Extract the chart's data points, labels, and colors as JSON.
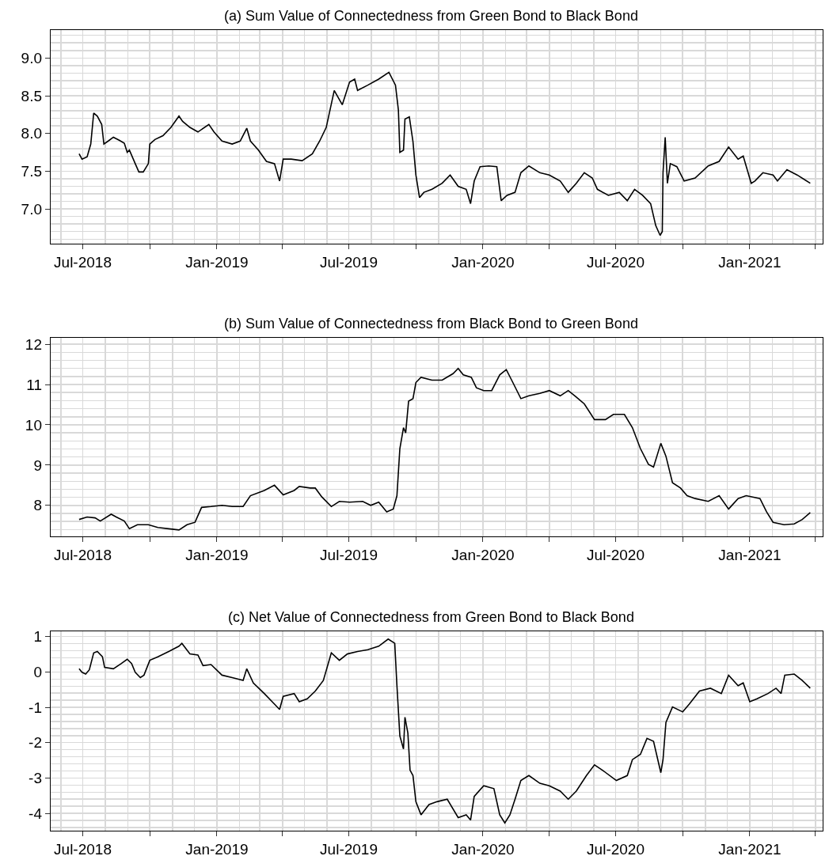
{
  "chart_data": [
    {
      "type": "line",
      "title": "(a) Sum Value of Connectedness from Green Bond to Black Bond",
      "grid": true,
      "xlim": [
        "2018-05-18",
        "2021-04-11"
      ],
      "xticks": [
        {
          "value": "2018-07-01",
          "label": "Jul-2018"
        },
        {
          "value": "2018-10-01",
          "label": null
        },
        {
          "value": "2019-01-01",
          "label": "Jan-2019"
        },
        {
          "value": "2019-04-01",
          "label": null
        },
        {
          "value": "2019-07-01",
          "label": "Jul-2019"
        },
        {
          "value": "2019-10-01",
          "label": null
        },
        {
          "value": "2020-01-01",
          "label": "Jan-2020"
        },
        {
          "value": "2020-04-01",
          "label": null
        },
        {
          "value": "2020-07-01",
          "label": "Jul-2020"
        },
        {
          "value": "2020-10-01",
          "label": null
        },
        {
          "value": "2021-01-01",
          "label": "Jan-2021"
        },
        {
          "value": "2021-04-01",
          "label": null
        }
      ],
      "ylim": [
        6.54,
        9.37
      ],
      "yticks": [
        {
          "value": 7,
          "label": "7.0"
        },
        7.5,
        {
          "value": 8,
          "label": "8.0"
        },
        8.5,
        {
          "value": 9,
          "label": "9.0"
        }
      ],
      "series": [
        {
          "color": "#000000",
          "x": [
            "2018-06-26",
            "2018-06-30",
            "2018-07-07",
            "2018-07-12",
            "2018-07-16",
            "2018-07-21",
            "2018-07-27",
            "2018-07-30",
            "2018-08-05",
            "2018-08-12",
            "2018-08-20",
            "2018-08-27",
            "2018-08-31",
            "2018-09-03",
            "2018-09-11",
            "2018-09-16",
            "2018-09-22",
            "2018-09-29",
            "2018-10-01",
            "2018-10-08",
            "2018-10-19",
            "2018-10-30",
            "2018-11-10",
            "2018-11-15",
            "2018-11-25",
            "2018-12-06",
            "2018-12-21",
            "2018-12-28",
            "2019-01-08",
            "2019-01-22",
            "2019-02-02",
            "2019-02-11",
            "2019-02-16",
            "2019-02-27",
            "2019-03-10",
            "2019-03-21",
            "2019-03-28",
            "2019-04-02",
            "2019-04-13",
            "2019-04-28",
            "2019-05-12",
            "2019-05-22",
            "2019-05-31",
            "2019-06-11",
            "2019-06-22",
            "2019-07-02",
            "2019-07-09",
            "2019-07-13",
            "2019-07-27",
            "2019-08-11",
            "2019-08-25",
            "2019-09-03",
            "2019-09-07",
            "2019-09-09",
            "2019-09-14",
            "2019-09-16",
            "2019-09-22",
            "2019-09-27",
            "2019-10-01",
            "2019-10-06",
            "2019-10-12",
            "2019-10-23",
            "2019-11-06",
            "2019-11-17",
            "2019-11-28",
            "2019-12-09",
            "2019-12-15",
            "2019-12-20",
            "2019-12-28",
            "2020-01-09",
            "2020-01-20",
            "2020-01-26",
            "2020-02-03",
            "2020-02-14",
            "2020-02-22",
            "2020-03-04",
            "2020-03-19",
            "2020-04-01",
            "2020-04-16",
            "2020-04-27",
            "2020-05-08",
            "2020-05-19",
            "2020-05-30",
            "2020-06-06",
            "2020-06-21",
            "2020-07-06",
            "2020-07-17",
            "2020-07-27",
            "2020-08-07",
            "2020-08-18",
            "2020-08-25",
            "2020-08-31",
            "2020-09-03",
            "2020-09-04",
            "2020-09-07",
            "2020-09-10",
            "2020-09-14",
            "2020-09-23",
            "2020-10-03",
            "2020-10-18",
            "2020-11-05",
            "2020-11-20",
            "2020-12-03",
            "2020-12-16",
            "2020-12-23",
            "2021-01-03",
            "2021-01-08",
            "2021-01-19",
            "2021-02-02",
            "2021-02-08",
            "2021-02-21",
            "2021-03-07",
            "2021-03-25"
          ],
          "values": [
            7.73,
            7.66,
            7.69,
            7.86,
            8.27,
            8.23,
            8.12,
            7.86,
            7.9,
            7.95,
            7.91,
            7.87,
            7.75,
            7.78,
            7.6,
            7.49,
            7.49,
            7.6,
            7.86,
            7.92,
            7.97,
            8.08,
            8.23,
            8.16,
            8.08,
            8.02,
            8.12,
            8.02,
            7.9,
            7.86,
            7.9,
            8.07,
            7.9,
            7.78,
            7.63,
            7.6,
            7.37,
            7.66,
            7.66,
            7.64,
            7.73,
            7.9,
            8.08,
            8.57,
            8.38,
            8.68,
            8.72,
            8.57,
            8.64,
            8.72,
            8.81,
            8.64,
            8.31,
            7.75,
            7.78,
            8.19,
            8.22,
            7.89,
            7.45,
            7.15,
            7.22,
            7.26,
            7.34,
            7.45,
            7.3,
            7.26,
            7.07,
            7.37,
            7.56,
            7.57,
            7.56,
            7.11,
            7.18,
            7.22,
            7.48,
            7.57,
            7.48,
            7.45,
            7.37,
            7.22,
            7.34,
            7.48,
            7.41,
            7.26,
            7.18,
            7.22,
            7.11,
            7.26,
            7.18,
            7.07,
            6.78,
            6.65,
            6.7,
            7.48,
            7.95,
            7.34,
            7.6,
            7.56,
            7.37,
            7.41,
            7.57,
            7.63,
            7.82,
            7.66,
            7.7,
            7.34,
            7.37,
            7.48,
            7.45,
            7.37,
            7.52,
            7.45,
            7.34
          ]
        }
      ]
    },
    {
      "type": "line",
      "title": "(b) Sum Value of Connectedness from Black Bond to Green Bond",
      "grid": true,
      "xlim": [
        "2018-05-18",
        "2021-04-11"
      ],
      "xticks": [
        {
          "value": "2018-07-01",
          "label": "Jul-2018"
        },
        {
          "value": "2018-10-01",
          "label": null
        },
        {
          "value": "2019-01-01",
          "label": "Jan-2019"
        },
        {
          "value": "2019-04-01",
          "label": null
        },
        {
          "value": "2019-07-01",
          "label": "Jul-2019"
        },
        {
          "value": "2019-10-01",
          "label": null
        },
        {
          "value": "2020-01-01",
          "label": "Jan-2020"
        },
        {
          "value": "2020-04-01",
          "label": null
        },
        {
          "value": "2020-07-01",
          "label": "Jul-2020"
        },
        {
          "value": "2020-10-01",
          "label": null
        },
        {
          "value": "2021-01-01",
          "label": "Jan-2021"
        },
        {
          "value": "2021-04-01",
          "label": null
        }
      ],
      "ylim": [
        7.23,
        12.16
      ],
      "yticks": [
        8,
        9,
        10,
        11,
        12
      ],
      "series": [
        {
          "color": "#000000",
          "x": [
            "2018-06-26",
            "2018-07-07",
            "2018-07-18",
            "2018-07-25",
            "2018-08-09",
            "2018-08-16",
            "2018-08-27",
            "2018-09-03",
            "2018-09-14",
            "2018-09-29",
            "2018-10-12",
            "2018-10-27",
            "2018-11-10",
            "2018-11-21",
            "2018-12-02",
            "2018-12-11",
            "2018-12-24",
            "2019-01-08",
            "2019-01-22",
            "2019-02-06",
            "2019-02-16",
            "2019-03-07",
            "2019-03-21",
            "2019-04-02",
            "2019-04-17",
            "2019-04-24",
            "2019-05-09",
            "2019-05-16",
            "2019-05-25",
            "2019-06-07",
            "2019-06-18",
            "2019-07-02",
            "2019-07-20",
            "2019-07-31",
            "2019-08-11",
            "2019-08-22",
            "2019-08-31",
            "2019-09-05",
            "2019-09-09",
            "2019-09-14",
            "2019-09-17",
            "2019-09-21",
            "2019-09-27",
            "2019-10-01",
            "2019-10-08",
            "2019-10-23",
            "2019-11-06",
            "2019-11-21",
            "2019-11-28",
            "2019-12-05",
            "2019-12-16",
            "2019-12-23",
            "2020-01-02",
            "2020-01-13",
            "2020-01-24",
            "2020-02-02",
            "2020-02-11",
            "2020-02-22",
            "2020-03-04",
            "2020-03-19",
            "2020-04-01",
            "2020-04-16",
            "2020-04-27",
            "2020-05-08",
            "2020-05-19",
            "2020-06-02",
            "2020-06-17",
            "2020-06-28",
            "2020-07-13",
            "2020-07-24",
            "2020-08-04",
            "2020-08-15",
            "2020-08-22",
            "2020-09-01",
            "2020-09-08",
            "2020-09-17",
            "2020-09-28",
            "2020-10-07",
            "2020-10-18",
            "2020-11-05",
            "2020-11-20",
            "2020-12-03",
            "2020-12-16",
            "2020-12-27",
            "2021-01-15",
            "2021-01-24",
            "2021-02-02",
            "2021-02-17",
            "2021-03-03",
            "2021-03-14",
            "2021-03-25"
          ],
          "values": [
            7.65,
            7.71,
            7.69,
            7.61,
            7.78,
            7.71,
            7.61,
            7.42,
            7.52,
            7.52,
            7.45,
            7.42,
            7.39,
            7.52,
            7.58,
            7.95,
            7.97,
            8.0,
            7.97,
            7.97,
            8.24,
            8.37,
            8.5,
            8.26,
            8.37,
            8.47,
            8.43,
            8.43,
            8.21,
            7.97,
            8.1,
            8.08,
            8.1,
            8.0,
            8.08,
            7.84,
            7.91,
            8.24,
            9.41,
            9.93,
            9.8,
            10.59,
            10.65,
            11.05,
            11.18,
            11.11,
            11.11,
            11.27,
            11.4,
            11.24,
            11.18,
            10.92,
            10.85,
            10.85,
            11.24,
            11.37,
            11.05,
            10.65,
            10.72,
            10.78,
            10.85,
            10.72,
            10.85,
            10.69,
            10.52,
            10.13,
            10.13,
            10.26,
            10.26,
            9.93,
            9.41,
            9.02,
            8.95,
            9.54,
            9.22,
            8.56,
            8.43,
            8.24,
            8.17,
            8.1,
            8.24,
            7.91,
            8.17,
            8.24,
            8.17,
            7.84,
            7.58,
            7.52,
            7.54,
            7.65,
            7.82
          ]
        }
      ]
    },
    {
      "type": "line",
      "title": "(c) Net Value of Connectedness from Green Bond to Black Bond",
      "grid": true,
      "xlim": [
        "2018-05-18",
        "2021-04-11"
      ],
      "xticks": [
        {
          "value": "2018-07-01",
          "label": "Jul-2018"
        },
        {
          "value": "2018-10-01",
          "label": null
        },
        {
          "value": "2019-01-01",
          "label": "Jan-2019"
        },
        {
          "value": "2019-04-01",
          "label": null
        },
        {
          "value": "2019-07-01",
          "label": "Jul-2019"
        },
        {
          "value": "2019-10-01",
          "label": null
        },
        {
          "value": "2020-01-01",
          "label": "Jan-2020"
        },
        {
          "value": "2020-04-01",
          "label": null
        },
        {
          "value": "2020-07-01",
          "label": "Jul-2020"
        },
        {
          "value": "2020-10-01",
          "label": null
        },
        {
          "value": "2021-01-01",
          "label": "Jan-2021"
        },
        {
          "value": "2021-04-01",
          "label": null
        }
      ],
      "ylim": [
        -4.49,
        1.15
      ],
      "yticks": [
        -4,
        -3,
        -2,
        -1,
        0,
        1
      ],
      "series": [
        {
          "color": "#000000",
          "x": [
            "2018-06-26",
            "2018-06-30",
            "2018-07-05",
            "2018-07-10",
            "2018-07-16",
            "2018-07-21",
            "2018-07-28",
            "2018-07-31",
            "2018-08-12",
            "2018-08-23",
            "2018-08-31",
            "2018-09-06",
            "2018-09-11",
            "2018-09-18",
            "2018-09-23",
            "2018-10-01",
            "2018-10-12",
            "2018-10-27",
            "2018-11-10",
            "2018-11-14",
            "2018-11-25",
            "2018-12-06",
            "2018-12-13",
            "2018-12-24",
            "2019-01-08",
            "2019-01-22",
            "2019-02-06",
            "2019-02-11",
            "2019-02-20",
            "2019-03-07",
            "2019-03-21",
            "2019-03-28",
            "2019-04-02",
            "2019-04-17",
            "2019-04-24",
            "2019-05-05",
            "2019-05-16",
            "2019-05-27",
            "2019-06-07",
            "2019-06-18",
            "2019-06-29",
            "2019-07-13",
            "2019-07-27",
            "2019-08-11",
            "2019-08-24",
            "2019-09-02",
            "2019-09-05",
            "2019-09-09",
            "2019-09-14",
            "2019-09-16",
            "2019-09-20",
            "2019-09-23",
            "2019-09-27",
            "2019-10-01",
            "2019-10-08",
            "2019-10-19",
            "2019-10-30",
            "2019-11-13",
            "2019-11-28",
            "2019-12-09",
            "2019-12-15",
            "2019-12-20",
            "2020-01-02",
            "2020-01-16",
            "2020-01-24",
            "2020-01-31",
            "2020-02-07",
            "2020-02-14",
            "2020-02-22",
            "2020-03-04",
            "2020-03-19",
            "2020-04-01",
            "2020-04-16",
            "2020-04-27",
            "2020-05-08",
            "2020-05-22",
            "2020-06-02",
            "2020-06-13",
            "2020-07-02",
            "2020-07-17",
            "2020-07-24",
            "2020-08-04",
            "2020-08-13",
            "2020-08-22",
            "2020-09-01",
            "2020-09-04",
            "2020-09-08",
            "2020-09-17",
            "2020-10-01",
            "2020-10-10",
            "2020-10-24",
            "2020-11-08",
            "2020-11-23",
            "2020-12-03",
            "2020-12-16",
            "2020-12-23",
            "2021-01-01",
            "2021-01-11",
            "2021-01-26",
            "2021-02-06",
            "2021-02-13",
            "2021-02-18",
            "2021-03-03",
            "2021-03-14",
            "2021-03-25"
          ],
          "values": [
            0.09,
            -0.01,
            -0.06,
            0.06,
            0.54,
            0.58,
            0.43,
            0.13,
            0.09,
            0.24,
            0.36,
            0.24,
            -0.01,
            -0.16,
            -0.09,
            0.33,
            0.43,
            0.58,
            0.73,
            0.81,
            0.51,
            0.48,
            0.18,
            0.21,
            -0.09,
            -0.16,
            -0.24,
            0.09,
            -0.31,
            -0.61,
            -0.91,
            -1.06,
            -0.69,
            -0.61,
            -0.84,
            -0.76,
            -0.54,
            -0.24,
            0.54,
            0.33,
            0.51,
            0.58,
            0.63,
            0.73,
            0.93,
            0.81,
            -0.39,
            -1.81,
            -2.18,
            -1.28,
            -1.73,
            -2.78,
            -2.93,
            -3.67,
            -4.04,
            -3.75,
            -3.67,
            -3.6,
            -4.12,
            -4.04,
            -4.19,
            -3.52,
            -3.22,
            -3.3,
            -4.04,
            -4.27,
            -4.04,
            -3.6,
            -3.07,
            -2.93,
            -3.15,
            -3.22,
            -3.37,
            -3.6,
            -3.37,
            -2.93,
            -2.63,
            -2.78,
            -3.07,
            -2.93,
            -2.48,
            -2.33,
            -1.88,
            -1.96,
            -2.85,
            -2.48,
            -1.43,
            -0.99,
            -1.13,
            -0.91,
            -0.54,
            -0.46,
            -0.61,
            -0.09,
            -0.39,
            -0.31,
            -0.84,
            -0.76,
            -0.61,
            -0.46,
            -0.61,
            -0.09,
            -0.06,
            -0.24,
            -0.46
          ]
        }
      ]
    }
  ]
}
